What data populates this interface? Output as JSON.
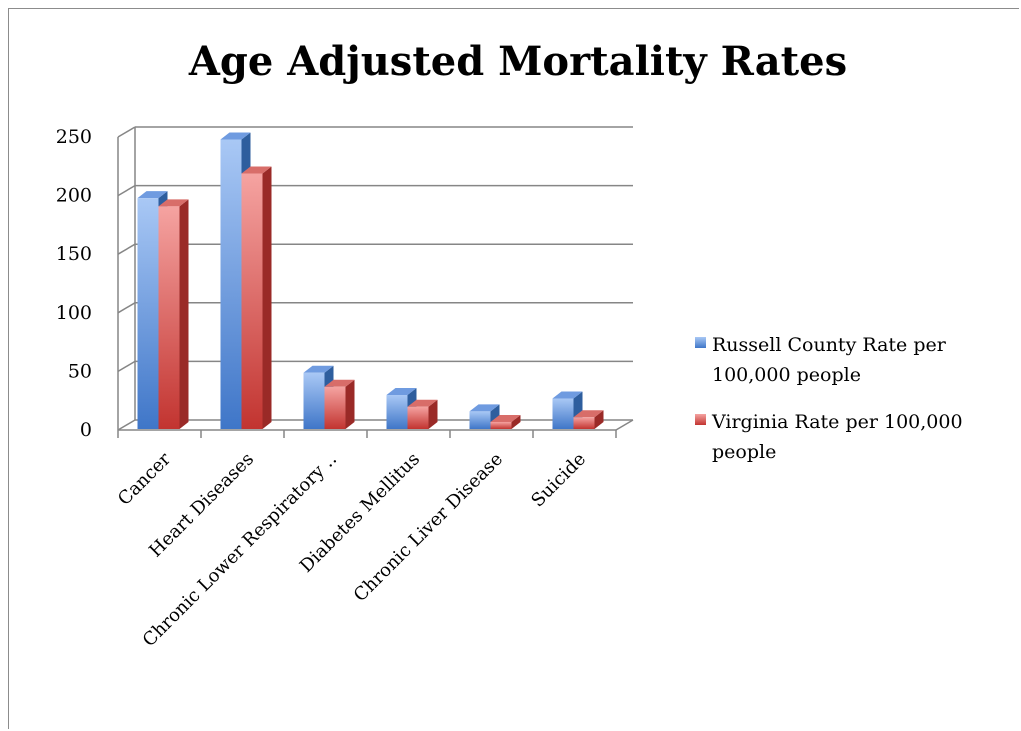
{
  "chart_data": {
    "type": "bar",
    "title": "Age Adjusted Mortality Rates",
    "xlabel": "",
    "ylabel": "",
    "ylim": [
      0,
      250
    ],
    "yticks": [
      0,
      50,
      100,
      150,
      200,
      250
    ],
    "grid": true,
    "legend_position": "right",
    "categories": [
      "Cancer",
      "Heart Diseases",
      "Chronic Lower Respiratory ..",
      "Diabetes Mellitus",
      "Chronic Liver Disease",
      "Suicide"
    ],
    "series": [
      {
        "name": "Russell County Rate per 100,000 people",
        "color": "#4f81bd",
        "values": [
          197,
          247,
          48,
          29,
          15,
          26
        ]
      },
      {
        "name": "Virginia Rate per 100,000 people",
        "color": "#c0504d",
        "values": [
          190,
          218,
          36,
          19,
          6,
          10
        ]
      }
    ],
    "legend_lines": [
      [
        "Russell County Rate per",
        "100,000 people"
      ],
      [
        "Virginia Rate per 100,000",
        "people"
      ]
    ]
  }
}
